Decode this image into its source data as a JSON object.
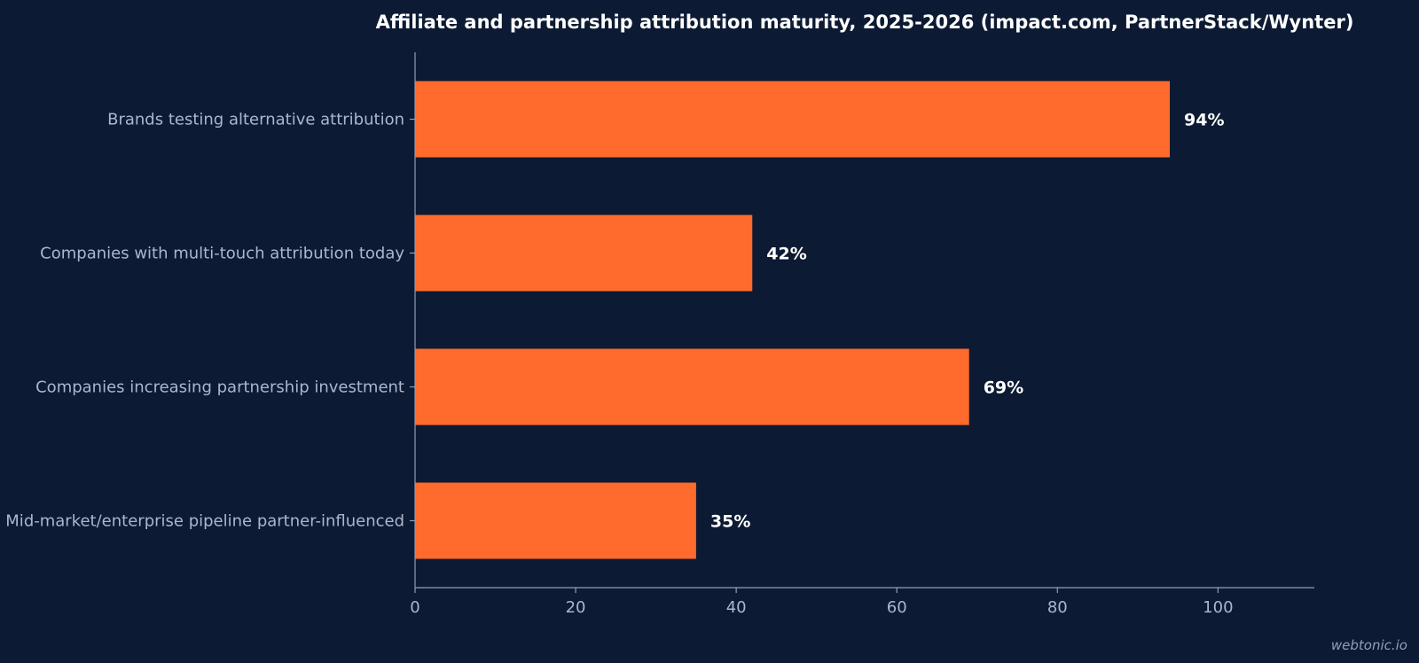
{
  "chart_data": {
    "type": "bar",
    "orientation": "horizontal",
    "title": "Affiliate and partnership attribution maturity, 2025-2026 (impact.com, PartnerStack/Wynter)",
    "categories": [
      "Brands testing alternative attribution",
      "Companies with multi-touch attribution today",
      "Companies increasing partnership investment",
      "Mid-market/enterprise pipeline partner-influenced"
    ],
    "values": [
      94,
      42,
      69,
      35
    ],
    "value_labels": [
      "94%",
      "42%",
      "69%",
      "35%"
    ],
    "xlim": [
      0,
      112
    ],
    "xticks": [
      0,
      20,
      40,
      60,
      80,
      100
    ],
    "xtick_labels": [
      "0",
      "20",
      "40",
      "60",
      "80",
      "100"
    ],
    "xlabel": "",
    "ylabel": "",
    "grid": false,
    "legend": "none",
    "bar_color": "#ff6b2c",
    "background_color": "#0c1a33"
  },
  "watermark": "webtonic.io"
}
